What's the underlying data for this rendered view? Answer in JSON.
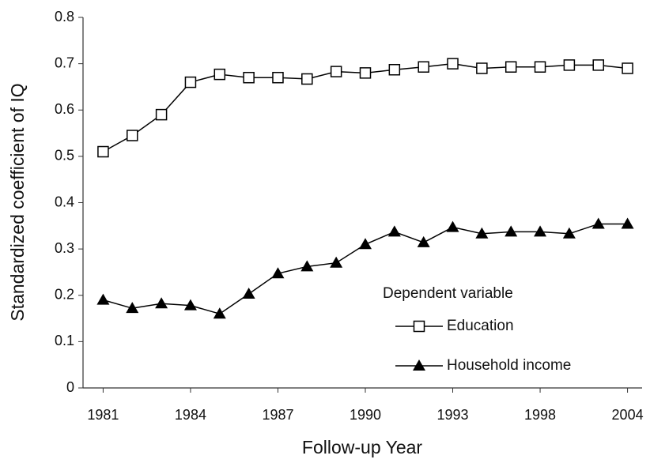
{
  "chart_data": {
    "type": "line",
    "x_label": "Follow-up Year",
    "y_label": "Standardized coefficient of IQ",
    "categories": [
      "1981",
      null,
      null,
      "1984",
      null,
      null,
      "1987",
      null,
      null,
      "1990",
      null,
      null,
      "1993",
      null,
      null,
      "1998",
      null,
      null,
      "2004"
    ],
    "series": [
      {
        "name": "Education",
        "color": "#000000",
        "marker": "square",
        "values": [
          0.51,
          0.545,
          0.59,
          0.66,
          0.677,
          0.67,
          0.67,
          0.667,
          0.683,
          0.68,
          0.687,
          0.693,
          0.7,
          0.69,
          0.693,
          0.693,
          0.697,
          0.697,
          0.69
        ]
      },
      {
        "name": "Household income",
        "color": "#000000",
        "marker": "triangle",
        "values": [
          0.19,
          0.172,
          0.182,
          0.178,
          0.16,
          0.203,
          0.247,
          0.262,
          0.27,
          0.31,
          0.337,
          0.314,
          0.347,
          0.333,
          0.337,
          0.337,
          0.333,
          0.354,
          0.354
        ]
      }
    ],
    "legend_title": "Dependent variable",
    "legend_position": "lower right",
    "ylim": [
      0,
      0.8
    ],
    "yticks": [
      0,
      0.1,
      0.2,
      0.3,
      0.4,
      0.5,
      0.6,
      0.7,
      0.8
    ],
    "grid": false
  }
}
